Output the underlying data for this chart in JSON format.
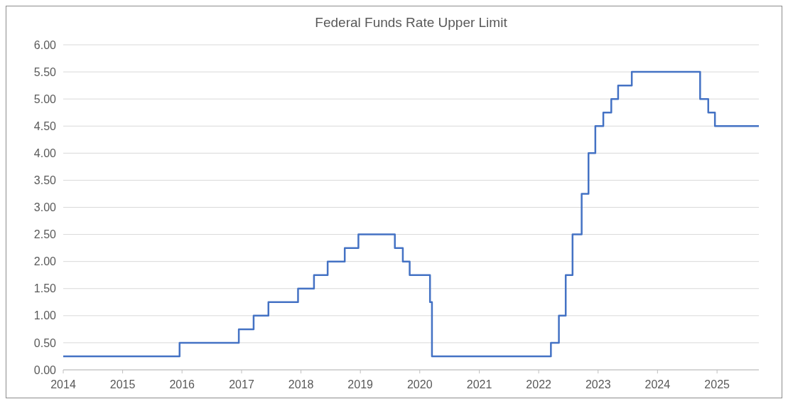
{
  "chart_data": {
    "type": "step",
    "title": "Federal Funds Rate Upper Limit",
    "x": [
      "2014-01-01",
      "2015-12-17",
      "2016-12-15",
      "2017-03-16",
      "2017-06-15",
      "2017-12-14",
      "2018-03-22",
      "2018-06-14",
      "2018-09-27",
      "2018-12-20",
      "2019-08-01",
      "2019-09-19",
      "2019-10-31",
      "2020-03-04",
      "2020-03-16",
      "2022-03-17",
      "2022-05-05",
      "2022-06-16",
      "2022-07-28",
      "2022-09-22",
      "2022-11-03",
      "2022-12-15",
      "2023-02-02",
      "2023-03-23",
      "2023-05-04",
      "2023-07-27",
      "2024-09-19",
      "2024-11-08",
      "2024-12-19",
      "2025-09-15"
    ],
    "series": [
      {
        "color": "#4472c4",
        "values": [
          0.25,
          0.5,
          0.75,
          1.0,
          1.25,
          1.5,
          1.75,
          2.0,
          2.25,
          2.5,
          2.25,
          2.0,
          1.75,
          1.25,
          0.25,
          0.5,
          1.0,
          1.75,
          2.5,
          3.25,
          4.0,
          4.5,
          4.75,
          5.0,
          5.25,
          5.5,
          5.0,
          4.75,
          4.5,
          4.5
        ]
      }
    ],
    "xlim": [
      "2014-01-01",
      "2025-09-15"
    ],
    "xticks": [
      "2014",
      "2015",
      "2016",
      "2017",
      "2018",
      "2019",
      "2020",
      "2021",
      "2022",
      "2023",
      "2024",
      "2025"
    ],
    "ylim": [
      0,
      6
    ],
    "yticks": [
      {
        "value": 0,
        "label": "0.00"
      },
      {
        "value": 0.5,
        "label": "0.50"
      },
      {
        "value": 1,
        "label": "1.00"
      },
      {
        "value": 1.5,
        "label": "1.50"
      },
      {
        "value": 2,
        "label": "2.00"
      },
      {
        "value": 2.5,
        "label": "2.50"
      },
      {
        "value": 3,
        "label": "3.00"
      },
      {
        "value": 3.5,
        "label": "3.50"
      },
      {
        "value": 4,
        "label": "4.00"
      },
      {
        "value": 4.5,
        "label": "4.50"
      },
      {
        "value": 5,
        "label": "5.00"
      },
      {
        "value": 5.5,
        "label": "5.50"
      },
      {
        "value": 6,
        "label": "6.00"
      }
    ],
    "grid": "y",
    "line_style": "solid"
  }
}
